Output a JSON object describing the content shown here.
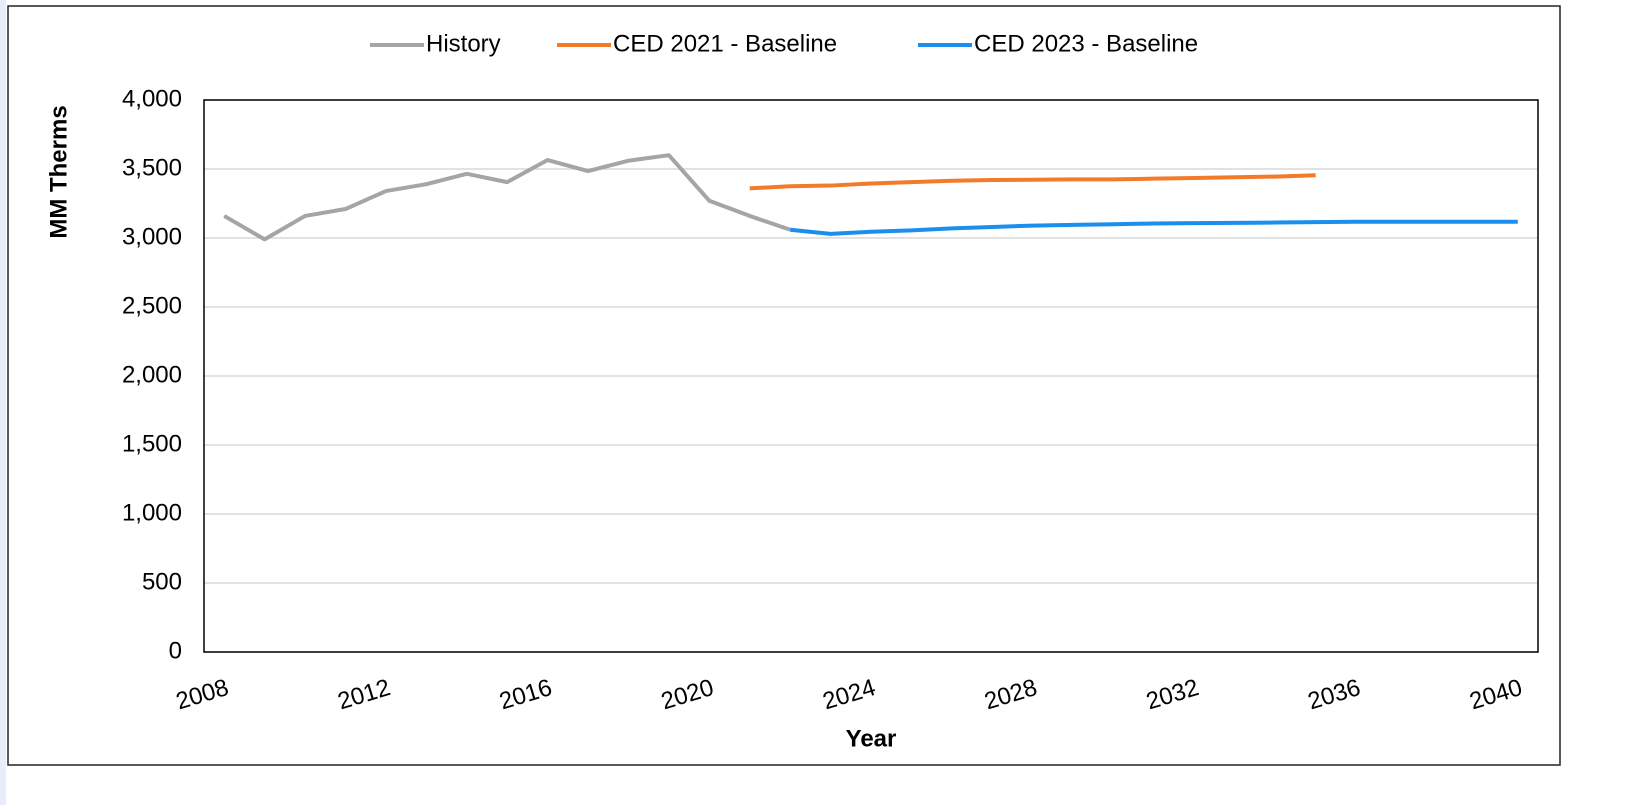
{
  "chart_data": {
    "type": "line",
    "xlabel": "Year",
    "ylabel": "MM Therms",
    "xlim": [
      2007.5,
      2040.5
    ],
    "xticks": [
      2008,
      2012,
      2016,
      2020,
      2024,
      2028,
      2032,
      2036,
      2040
    ],
    "ylim": [
      0,
      4000
    ],
    "yticks": [
      0,
      500,
      {
        "value": 1000,
        "label": "1,000"
      },
      {
        "value": 1500,
        "label": "1,500"
      },
      {
        "value": 2000,
        "label": "2,000"
      },
      {
        "value": 2500,
        "label": "2,500"
      },
      {
        "value": 3000,
        "label": "3,000"
      },
      {
        "value": 3500,
        "label": "3,500"
      },
      {
        "value": 4000,
        "label": "4,000"
      }
    ],
    "grid": true,
    "legend": "top",
    "series": [
      {
        "name": "History",
        "color": "#a5a5a8",
        "x": [
          2008,
          2009,
          2010,
          2011,
          2012,
          2013,
          2014,
          2015,
          2016,
          2017,
          2018,
          2019,
          2020,
          2021,
          2022
        ],
        "values": [
          3160,
          2990,
          3160,
          3210,
          3340,
          3390,
          3465,
          3405,
          3565,
          3485,
          3560,
          3600,
          3270,
          3160,
          3060
        ]
      },
      {
        "name": "CED 2021 - Baseline",
        "color": "#f47a2a",
        "x": [
          2021,
          2022,
          2023,
          2024,
          2025,
          2026,
          2027,
          2028,
          2029,
          2030,
          2031,
          2032,
          2033,
          2034,
          2035
        ],
        "values": [
          3360,
          3375,
          3380,
          3395,
          3405,
          3415,
          3420,
          3422,
          3425,
          3425,
          3430,
          3435,
          3440,
          3445,
          3455
        ]
      },
      {
        "name": "CED 2023 - Baseline",
        "color": "#1a8ff0",
        "x": [
          2022,
          2023,
          2024,
          2025,
          2026,
          2027,
          2028,
          2029,
          2030,
          2031,
          2032,
          2033,
          2034,
          2035,
          2036,
          2037,
          2038,
          2039,
          2040
        ],
        "values": [
          3060,
          3030,
          3045,
          3055,
          3070,
          3080,
          3090,
          3095,
          3100,
          3105,
          3108,
          3110,
          3112,
          3115,
          3118,
          3118,
          3118,
          3118,
          3118
        ]
      }
    ]
  }
}
